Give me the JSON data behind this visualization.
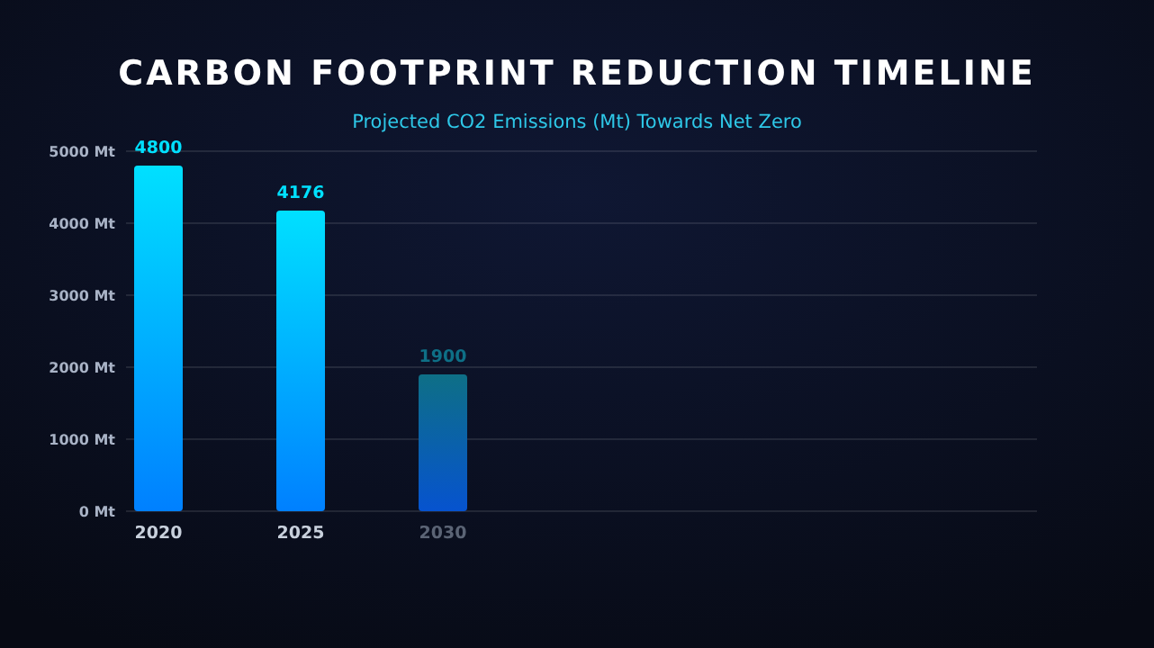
{
  "chart_data": {
    "type": "bar",
    "title": "CARBON FOOTPRINT REDUCTION TIMELINE",
    "subtitle": "Projected CO2 Emissions (Mt) Towards Net Zero",
    "categories": [
      "2020",
      "2025",
      "2030"
    ],
    "values": [
      4800,
      4176,
      1900
    ],
    "colors": [
      "#00e0ff",
      "#00e0ff",
      "#0e6f86"
    ],
    "ylim": [
      0,
      5000
    ],
    "yticks": [
      {
        "value": 0,
        "label": "0 Mt"
      },
      {
        "value": 1000,
        "label": "1000 Mt"
      },
      {
        "value": 2000,
        "label": "2000 Mt"
      },
      {
        "value": 3000,
        "label": "3000 Mt"
      },
      {
        "value": 4000,
        "label": "4000 Mt"
      },
      {
        "value": 5000,
        "label": "5000 Mt"
      }
    ],
    "grid": "y",
    "data_labels": true
  }
}
